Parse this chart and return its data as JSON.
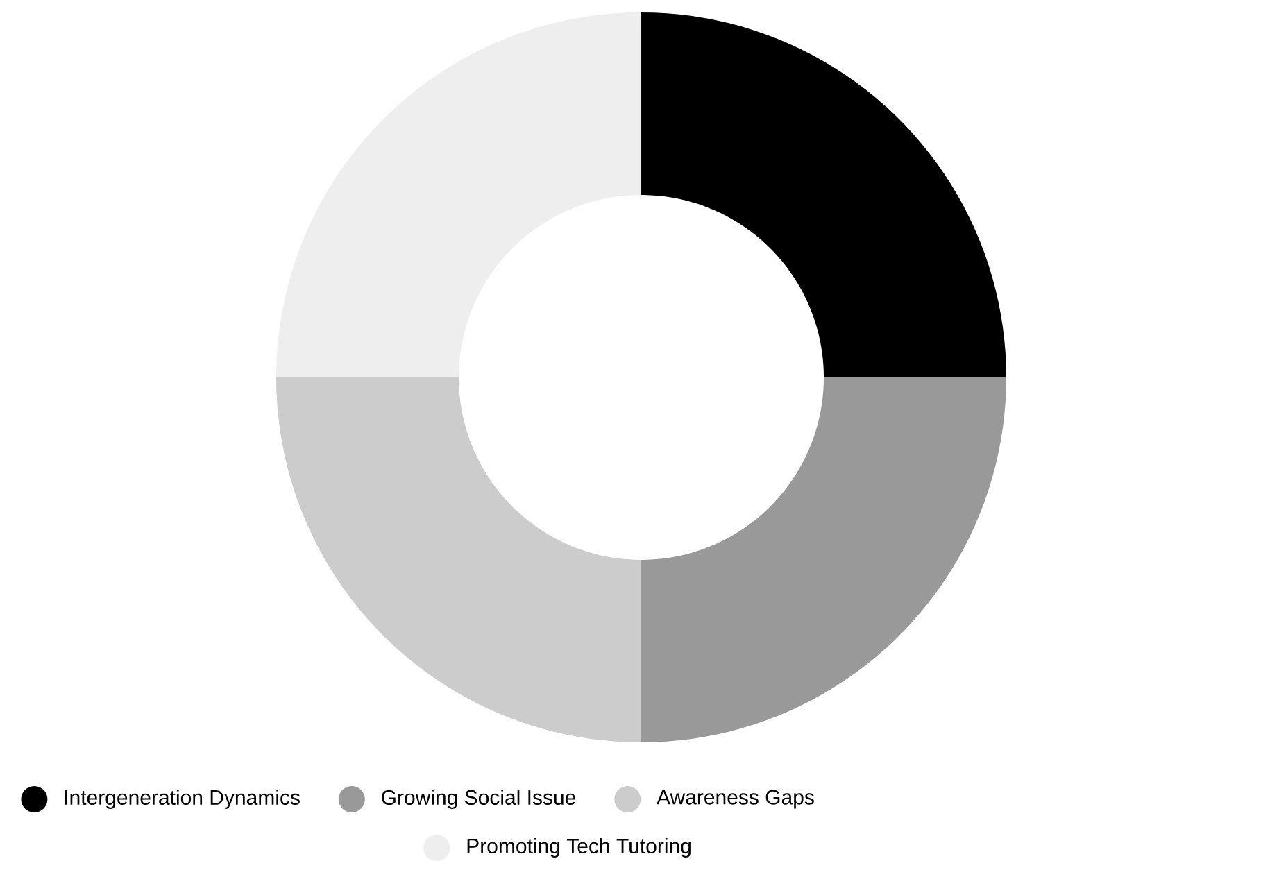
{
  "chart_data": {
    "type": "donut",
    "categories": [
      "Intergeneration Dynamics",
      "Growing Social Issue",
      "Awareness Gaps",
      "Promoting Tech Tutoring"
    ],
    "values": [
      25,
      25,
      25,
      25
    ],
    "colors": [
      "#000000",
      "#999999",
      "#cccccc",
      "#eeeeee"
    ],
    "legend": "bottom"
  }
}
